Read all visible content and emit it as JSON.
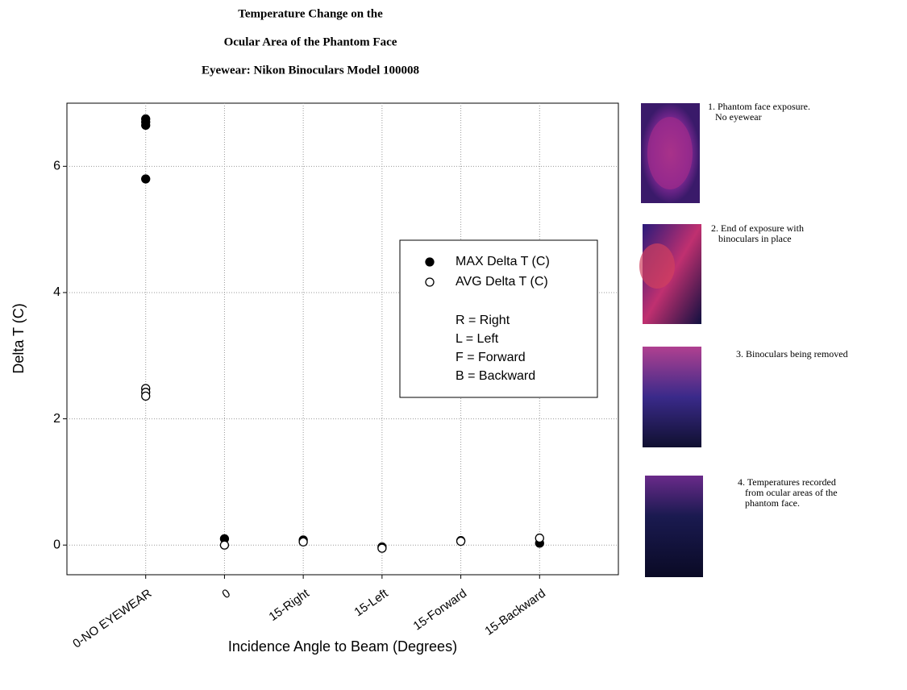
{
  "chart_data": {
    "type": "scatter",
    "title_lines": [
      "Temperature Change on the",
      "Ocular Area of the Phantom Face",
      "Eyewear: Nikon Binoculars Model 100008"
    ],
    "x_label": "Incidence Angle to Beam (Degrees)",
    "y_label": "Delta T (C)",
    "categories": [
      "0-NO EYEWEAR",
      "0",
      "15-Right",
      "15-Left",
      "15-Forward",
      "15-Backward"
    ],
    "series": [
      {
        "name": "MAX Delta T (C)",
        "color": "#000000",
        "filled": true,
        "values": [
          [
            6.75,
            6.7,
            6.65,
            5.8
          ],
          [
            0.1
          ],
          [
            0.08
          ],
          [
            -0.03
          ],
          [
            0.07
          ],
          [
            0.03
          ]
        ]
      },
      {
        "name": "AVG Delta T (C)",
        "color": "#000000",
        "filled": false,
        "values": [
          [
            2.48,
            2.42,
            2.36
          ],
          [
            0.0
          ],
          [
            0.05
          ],
          [
            -0.05
          ],
          [
            0.06
          ],
          [
            0.11
          ]
        ]
      }
    ],
    "legend_notes": [
      "R = Right",
      "L = Left",
      "F = Forward",
      "B = Backward"
    ],
    "ylim": [
      -0.47,
      7.0
    ],
    "yticks": [
      0,
      2,
      4,
      6
    ],
    "grid": true
  },
  "panels": [
    {
      "caption": [
        "1. Phantom face exposure.",
        "No eyewear"
      ]
    },
    {
      "caption": [
        "2. End of exposure with",
        "binoculars in place"
      ]
    },
    {
      "caption": [
        "3. Binoculars being removed"
      ]
    },
    {
      "caption": [
        "4. Temperatures recorded",
        "from ocular areas of the",
        "phantom face."
      ]
    }
  ]
}
